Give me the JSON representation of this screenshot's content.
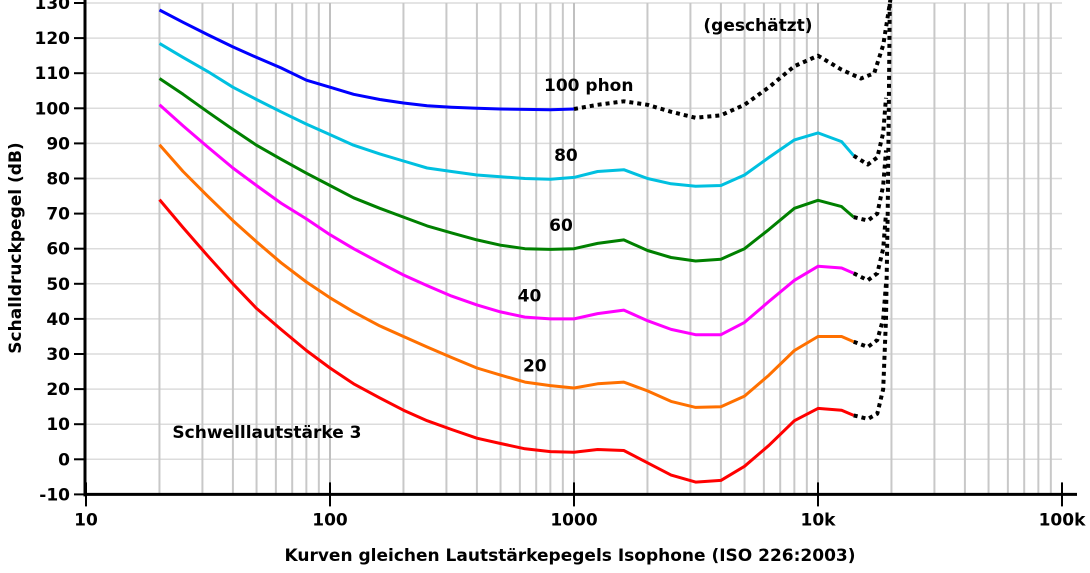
{
  "chart_data": {
    "type": "line",
    "title": "",
    "xlabel": "Kurven gleichen Lautstärkepegels Isophone (ISO 226:2003)",
    "ylabel": "Schalldruckpegel (dB)",
    "xscale": "log",
    "xlim": [
      10,
      100000
    ],
    "ylim": [
      -10,
      130
    ],
    "grid": true,
    "xticks": [
      {
        "v": 10,
        "label": "10"
      },
      {
        "v": 100,
        "label": "100"
      },
      {
        "v": 1000,
        "label": "1000"
      },
      {
        "v": 10000,
        "label": "10k"
      },
      {
        "v": 100000,
        "label": "100k"
      }
    ],
    "yticks": [
      -10,
      0,
      10,
      20,
      30,
      40,
      50,
      60,
      70,
      80,
      90,
      100,
      110,
      120,
      130
    ],
    "series": [
      {
        "name": "Schwelllautstärke 3",
        "color": "#ff0000",
        "style": "solid",
        "x": [
          20,
          25,
          31.5,
          40,
          50,
          63,
          80,
          100,
          125,
          160,
          200,
          250,
          315,
          400,
          500,
          630,
          800,
          1000,
          1250,
          1600,
          2000,
          2500,
          3150,
          4000,
          5000,
          6300,
          8000,
          10000,
          12500,
          14000
        ],
        "y": [
          74,
          66,
          58,
          50,
          43,
          37,
          31,
          26,
          21.5,
          17.5,
          14,
          11,
          8.5,
          6,
          4.5,
          3,
          2.2,
          2,
          2.8,
          2.5,
          -1,
          -4.5,
          -6.5,
          -6,
          -2,
          4,
          11,
          14.5,
          14,
          12.5
        ]
      },
      {
        "name": "20",
        "color": "#ff7000",
        "style": "solid",
        "x": [
          20,
          25,
          31.5,
          40,
          50,
          63,
          80,
          100,
          125,
          160,
          200,
          250,
          315,
          400,
          500,
          630,
          800,
          1000,
          1250,
          1600,
          2000,
          2500,
          3150,
          4000,
          5000,
          6300,
          8000,
          10000,
          12500,
          14000
        ],
        "y": [
          89.6,
          82,
          75,
          68,
          62,
          56,
          50.5,
          46,
          42,
          38,
          35,
          32,
          29,
          26,
          24,
          22,
          21,
          20.3,
          21.5,
          22,
          19.5,
          16.5,
          14.8,
          15,
          18,
          24,
          31,
          35,
          35,
          33.5
        ]
      },
      {
        "name": "40",
        "color": "#ff00ff",
        "style": "solid",
        "x": [
          20,
          25,
          31.5,
          40,
          50,
          63,
          80,
          100,
          125,
          160,
          200,
          250,
          315,
          400,
          500,
          630,
          800,
          1000,
          1250,
          1600,
          2000,
          2500,
          3150,
          4000,
          5000,
          6300,
          8000,
          10000,
          12500,
          14000
        ],
        "y": [
          101,
          95,
          89,
          83,
          78,
          73,
          68.5,
          64,
          60,
          56,
          52.5,
          49.5,
          46.5,
          44,
          42,
          40.5,
          40,
          40,
          41.5,
          42.5,
          39.5,
          37,
          35.5,
          35.5,
          39,
          45,
          51,
          55,
          54.5,
          53
        ]
      },
      {
        "name": "60",
        "color": "#008000",
        "style": "solid",
        "x": [
          20,
          25,
          31.5,
          40,
          50,
          63,
          80,
          100,
          125,
          160,
          200,
          250,
          315,
          400,
          500,
          630,
          800,
          1000,
          1250,
          1600,
          2000,
          2500,
          3150,
          4000,
          5000,
          6300,
          8000,
          10000,
          12500,
          14000
        ],
        "y": [
          108.5,
          104,
          99,
          94,
          89.5,
          85.5,
          81.5,
          78,
          74.5,
          71.5,
          69,
          66.5,
          64.5,
          62.5,
          61,
          60,
          59.8,
          60,
          61.5,
          62.5,
          59.5,
          57.5,
          56.5,
          57,
          60,
          65.5,
          71.5,
          73.8,
          72,
          69
        ]
      },
      {
        "name": "80",
        "color": "#00c0e0",
        "style": "solid",
        "x": [
          20,
          25,
          31.5,
          40,
          50,
          63,
          80,
          100,
          125,
          160,
          200,
          250,
          315,
          400,
          500,
          630,
          800,
          1000,
          1250,
          1600,
          2000,
          2500,
          3150,
          4000,
          5000,
          6300,
          8000,
          10000,
          12500,
          14000
        ],
        "y": [
          118.5,
          114.5,
          110.5,
          106,
          102.5,
          99,
          95.5,
          92.5,
          89.5,
          87,
          85,
          83,
          82,
          81,
          80.5,
          80,
          79.8,
          80.3,
          82,
          82.5,
          80,
          78.5,
          77.8,
          78,
          81,
          86,
          91,
          93,
          90.5,
          86.5
        ]
      },
      {
        "name": "100 phon",
        "color": "#0000ff",
        "style": "solid",
        "x": [
          20,
          25,
          31.5,
          40,
          50,
          63,
          80,
          100,
          125,
          160,
          200,
          250,
          315,
          400,
          500,
          630,
          800,
          1000
        ],
        "y": [
          128,
          124.5,
          121,
          117.5,
          114.5,
          111.5,
          108,
          106,
          104,
          102.5,
          101.5,
          100.7,
          100.3,
          100,
          99.8,
          99.7,
          99.6,
          99.8
        ]
      },
      {
        "name": "(geschätzt)",
        "color": "#000000",
        "style": "dotted",
        "x": [
          1000,
          1250,
          1600,
          2000,
          2500,
          3150,
          4000,
          5000,
          6300,
          8000,
          10000,
          12500,
          15000,
          17000,
          18500,
          19300,
          19800
        ],
        "y": [
          99.8,
          101,
          102,
          101,
          99,
          97.3,
          98,
          101,
          106,
          112,
          115,
          111,
          108.5,
          110,
          118,
          126,
          131
        ]
      },
      {
        "color": "#000000",
        "style": "dotted",
        "x": [
          14000,
          16000,
          17500,
          18500,
          19000,
          19300,
          19500,
          19700
        ],
        "y": [
          12.5,
          11.5,
          13,
          20,
          40,
          70,
          100,
          131
        ]
      },
      {
        "color": "#000000",
        "style": "dotted",
        "x": [
          14000,
          16000,
          17500,
          18500,
          19000
        ],
        "y": [
          33.5,
          32,
          34,
          40,
          50
        ]
      },
      {
        "color": "#000000",
        "style": "dotted",
        "x": [
          14000,
          16000,
          17500,
          18500,
          19000
        ],
        "y": [
          53,
          51,
          53,
          60,
          70
        ]
      },
      {
        "color": "#000000",
        "style": "dotted",
        "x": [
          14000,
          16000,
          17500,
          18500,
          19000
        ],
        "y": [
          69,
          68,
          70,
          78,
          88
        ]
      },
      {
        "color": "#000000",
        "style": "dotted",
        "x": [
          14000,
          16000,
          17500,
          18500,
          19000
        ],
        "y": [
          86.5,
          84,
          86,
          93,
          103
        ]
      }
    ],
    "annotations": [
      {
        "text": "100 phon",
        "x": 1000,
        "y": 105
      },
      {
        "text": "80",
        "x": 1100,
        "y": 85
      },
      {
        "text": "60",
        "x": 1050,
        "y": 65
      },
      {
        "text": "40",
        "x": 780,
        "y": 45
      },
      {
        "text": "20",
        "x": 820,
        "y": 25
      },
      {
        "text": "Schwelllautstärke 3",
        "x": 30,
        "y": 6
      },
      {
        "text": "(geschätzt)",
        "x": 4500,
        "y": 122
      }
    ]
  }
}
